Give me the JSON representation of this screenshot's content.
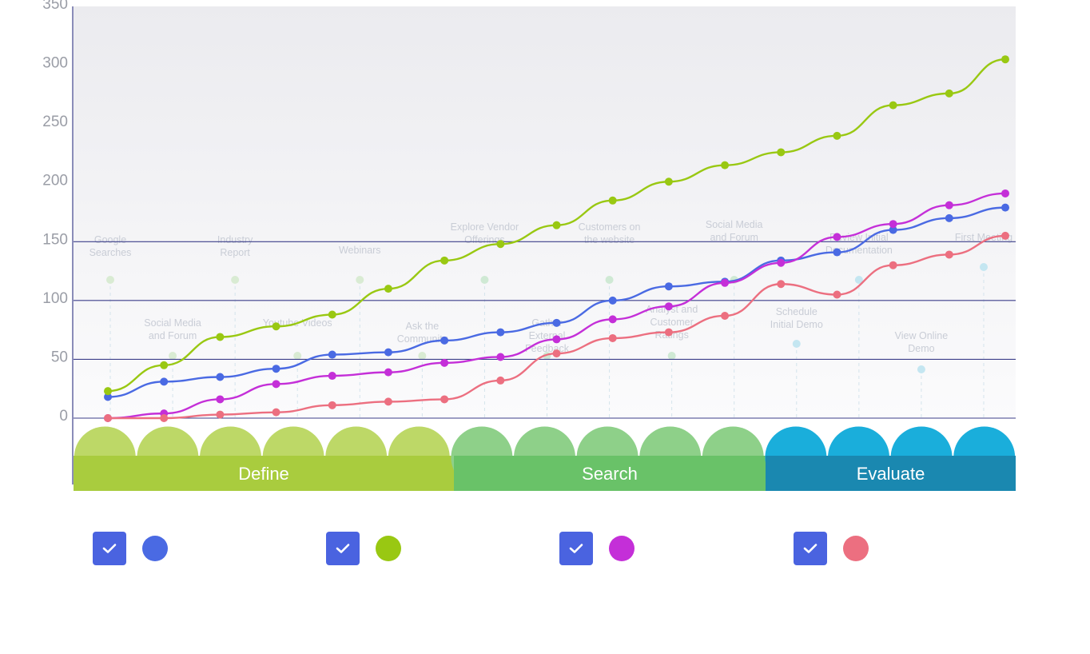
{
  "chart_data": {
    "type": "line",
    "x": [
      1,
      2,
      3,
      4,
      5,
      6,
      7,
      8,
      9,
      10,
      11,
      12,
      13,
      14,
      15,
      16,
      17
    ],
    "ylim": [
      0,
      350
    ],
    "yticks": [
      "0",
      "50",
      "100",
      "150",
      "200",
      "250",
      "300",
      "350"
    ],
    "grid": true,
    "series": [
      {
        "color": "#4a6ae3",
        "values": [
          18,
          31,
          35,
          42,
          54,
          56,
          66,
          73,
          81,
          100,
          112,
          116,
          134,
          141,
          160,
          170,
          179
        ]
      },
      {
        "color": "#99c812",
        "values": [
          23,
          45,
          69,
          78,
          88,
          110,
          134,
          148,
          164,
          185,
          201,
          215,
          226,
          240,
          266,
          276,
          305
        ]
      },
      {
        "color": "#c42fd8",
        "values": [
          0,
          4,
          16,
          29,
          36,
          39,
          47,
          52,
          67,
          84,
          95,
          115,
          132,
          154,
          165,
          181,
          191
        ]
      },
      {
        "color": "#ec6f80",
        "values": [
          0,
          0,
          3,
          5,
          11,
          14,
          16,
          32,
          55,
          68,
          73,
          87,
          114,
          105,
          130,
          139,
          155
        ]
      }
    ],
    "touchpoints": [
      "Google Searches",
      "Social Media and Forum",
      "Industry Report",
      "Youtube Videos",
      "Webinars",
      "Ask the Community",
      "Explore Vendor Offerings",
      "Gather External Feedback",
      "Customers on the website",
      "Analyst and Customer Ratings",
      "Social Media and Forum",
      "Schedule Initial Demo",
      "Review Initial Documentation",
      "View Online Demo",
      "First Meeting"
    ],
    "stages": [
      {
        "label": "Define",
        "color": "#a9cc3e",
        "circle_color": "#bdd867"
      },
      {
        "label": "Search",
        "color": "#69c268",
        "circle_color": "#8ed089"
      },
      {
        "label": "Evaluate",
        "color": "#1a88b0",
        "circle_color": "#1aaedb"
      }
    ]
  },
  "legend": [
    {
      "color": "#4a6ae3"
    },
    {
      "color": "#99c812"
    },
    {
      "color": "#c42fd8"
    },
    {
      "color": "#ec6f80"
    }
  ]
}
